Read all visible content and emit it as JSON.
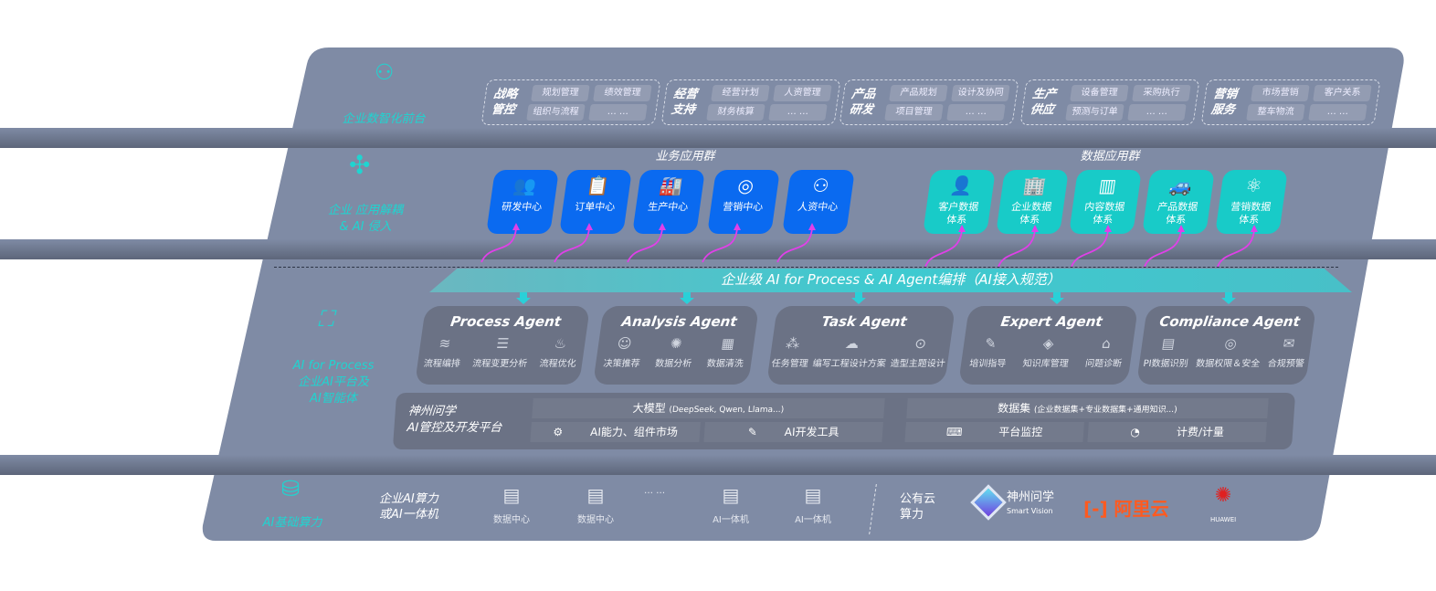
{
  "layers": {
    "frontend": {
      "label": "企业数智化前台",
      "icon": "brain-icon"
    },
    "apps": {
      "label_1": "企业 应用解耦",
      "label_2": "& AI 侵入",
      "icon": "molecule-icon"
    },
    "ai": {
      "label_1": "AI for Process",
      "label_2": "企业AI平台及",
      "label_3": "AI智能体",
      "icon": "face-scan-icon"
    },
    "compute": {
      "label": "AI基础算力",
      "icon": "database-icon"
    }
  },
  "groups": [
    {
      "title_1": "战略",
      "title_2": "管控",
      "chips": [
        "规划管理",
        "绩效管理",
        "组织与流程",
        "… …"
      ]
    },
    {
      "title_1": "经营",
      "title_2": "支持",
      "chips": [
        "经营计划",
        "人资管理",
        "财务核算",
        "… …"
      ]
    },
    {
      "title_1": "产品",
      "title_2": "研发",
      "chips": [
        "产品规划",
        "设计及协同",
        "项目管理",
        "… …"
      ]
    },
    {
      "title_1": "生产",
      "title_2": "供应",
      "chips": [
        "设备管理",
        "采购执行",
        "预测与订单",
        "… …"
      ]
    },
    {
      "title_1": "营销",
      "title_2": "服务",
      "chips": [
        "市场营销",
        "客户关系",
        "整车物流",
        "… …"
      ]
    }
  ],
  "business_apps": {
    "title": "业务应用群",
    "items": [
      {
        "label": "研发中心",
        "icon": "users-icon"
      },
      {
        "label": "订单中心",
        "icon": "clipboard-icon"
      },
      {
        "label": "生产中心",
        "icon": "factory-icon"
      },
      {
        "label": "营销中心",
        "icon": "target-icon"
      },
      {
        "label": "人资中心",
        "icon": "person-icon"
      }
    ]
  },
  "data_apps": {
    "title": "数据应用群",
    "items": [
      {
        "label_1": "客户数据",
        "label_2": "体系",
        "icon": "user-icon"
      },
      {
        "label_1": "企业数据",
        "label_2": "体系",
        "icon": "building-icon"
      },
      {
        "label_1": "内容数据",
        "label_2": "体系",
        "icon": "books-icon"
      },
      {
        "label_1": "产品数据",
        "label_2": "体系",
        "icon": "car-icon"
      },
      {
        "label_1": "营销数据",
        "label_2": "体系",
        "icon": "atom-icon"
      }
    ]
  },
  "banner": "企业级 AI for Process & AI Agent编排（AI接入规范）",
  "agents": [
    {
      "title": "Process Agent",
      "items": [
        "流程编排",
        "流程变更分析",
        "流程优化"
      ]
    },
    {
      "title": "Analysis Agent",
      "items": [
        "决策推荐",
        "数据分析",
        "数据清洗"
      ]
    },
    {
      "title": "Task Agent",
      "items": [
        "任务管理",
        "编写工程设计方案",
        "造型主题设计"
      ]
    },
    {
      "title": "Expert Agent",
      "items": [
        "培训指导",
        "知识库管理",
        "问题诊断"
      ]
    },
    {
      "title": "Compliance Agent",
      "items": [
        "PI数据识别",
        "数据权限＆安全",
        "合规预警"
      ]
    }
  ],
  "platform": {
    "title_1": "神州问学",
    "title_2": "AI管控及开发平台",
    "model": "大模型",
    "model_note": "(DeepSeek, Qwen, Llama...)",
    "dataset": "数据集",
    "dataset_note": "(企业数据集+专业数据集+通用知识...)",
    "market": "AI能力、组件市场",
    "devtools": "AI开发工具",
    "monitor": "平台监控",
    "billing": "计费/计量"
  },
  "compute": {
    "label_1": "企业AI算力",
    "label_2": "或AI一体机",
    "items": [
      "数据中心",
      "数据中心",
      "… …",
      "AI一体机",
      "AI一体机"
    ],
    "cloud_1": "公有云",
    "cloud_2": "算力",
    "vendors": {
      "smartvision_cn": "神州问学",
      "smartvision_en": "Smart Vision",
      "aliyun": "阿里云",
      "huawei": "HUAWEI"
    }
  },
  "colors": {
    "panel": "#7f8ba5",
    "accent": "#20d4d0",
    "blue": "#0a6af0",
    "teal": "#18cbc8",
    "arrow": "#e040e8",
    "aliyun": "#ff5a1f",
    "huawei": "#e02020"
  }
}
